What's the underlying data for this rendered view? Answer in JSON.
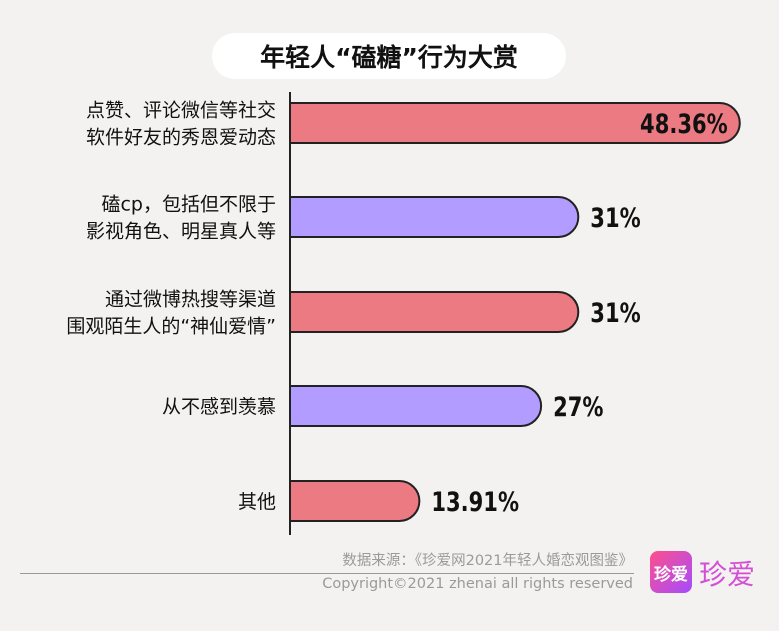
{
  "title": "年轻人“磕糖”行为大赏",
  "chart_data": {
    "type": "bar",
    "orientation": "horizontal",
    "categories": [
      [
        "点赞、评论微信等社交",
        "软件好友的秀恩爱动态"
      ],
      [
        "磕cp，包括但不限于",
        "影视角色、明星真人等"
      ],
      [
        "通过微博热搜等渠道",
        "围观陌生人的“神仙爱情”"
      ],
      [
        "从不感到羡慕"
      ],
      [
        "其他"
      ]
    ],
    "values": [
      48.36,
      31,
      31,
      27,
      13.91
    ],
    "labels": [
      "48.36%",
      "31%",
      "31%",
      "27%",
      "13.91%"
    ],
    "colors": [
      "#ec7a82",
      "#b29cff",
      "#ec7a82",
      "#b29cff",
      "#ec7a82"
    ],
    "xlim": [
      0,
      50
    ],
    "label_inside": [
      true,
      false,
      false,
      false,
      false
    ]
  },
  "footer": {
    "source": "数据来源：《珍爱网2021年轻人婚恋观图鉴》",
    "copyright": "Copyright©2021  zhenai  all rights reserved"
  },
  "logo": {
    "badge": "珍爱",
    "text": "珍爱"
  }
}
